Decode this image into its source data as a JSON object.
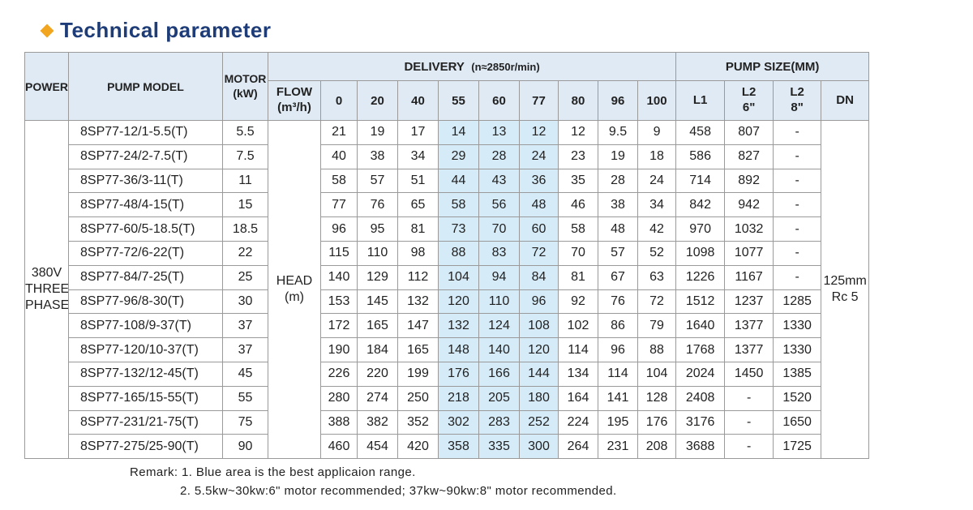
{
  "header": {
    "title": "Technical parameter"
  },
  "table": {
    "power_header": "POWER",
    "model_header": "PUMP MODEL",
    "motor_header": [
      "MOTOR",
      "(kW)"
    ],
    "delivery_header": "DELIVERY",
    "delivery_speed": "(n≈2850r/min)",
    "size_header": "PUMP SIZE(MM)",
    "flow_header": [
      "FLOW",
      "(m³/h)"
    ],
    "flow_points": [
      0,
      20,
      40,
      55,
      60,
      77,
      80,
      96,
      100
    ],
    "size_columns": [
      [
        "L1"
      ],
      [
        "L2",
        "6\""
      ],
      [
        "L2",
        "8\""
      ],
      [
        "DN"
      ]
    ],
    "power": [
      "380V",
      "THREE",
      "PHASE"
    ],
    "head_label": [
      "HEAD",
      "(m)"
    ],
    "dn": [
      "125mm",
      "Rc 5"
    ],
    "rows": [
      {
        "model": "8SP77-12/1-5.5(T)",
        "motor": 5.5,
        "head": [
          21,
          19,
          17,
          14,
          13,
          12,
          12,
          9.5,
          9
        ],
        "l1": 458,
        "l2_6": 807,
        "l2_8": "-"
      },
      {
        "model": "8SP77-24/2-7.5(T)",
        "motor": 7.5,
        "head": [
          40,
          38,
          34,
          29,
          28,
          24,
          23,
          19,
          18
        ],
        "l1": 586,
        "l2_6": 827,
        "l2_8": "-"
      },
      {
        "model": "8SP77-36/3-11(T)",
        "motor": 11,
        "head": [
          58,
          57,
          51,
          44,
          43,
          36,
          35,
          28,
          24
        ],
        "l1": 714,
        "l2_6": 892,
        "l2_8": "-"
      },
      {
        "model": "8SP77-48/4-15(T)",
        "motor": 15,
        "head": [
          77,
          76,
          65,
          58,
          56,
          48,
          46,
          38,
          34
        ],
        "l1": 842,
        "l2_6": 942,
        "l2_8": "-"
      },
      {
        "model": "8SP77-60/5-18.5(T)",
        "motor": 18.5,
        "head": [
          96,
          95,
          81,
          73,
          70,
          60,
          58,
          48,
          42
        ],
        "l1": 970,
        "l2_6": 1032,
        "l2_8": "-"
      },
      {
        "model": "8SP77-72/6-22(T)",
        "motor": 22,
        "head": [
          115,
          110,
          98,
          88,
          83,
          72,
          70,
          57,
          52
        ],
        "l1": 1098,
        "l2_6": 1077,
        "l2_8": "-"
      },
      {
        "model": "8SP77-84/7-25(T)",
        "motor": 25,
        "head": [
          140,
          129,
          112,
          104,
          94,
          84,
          81,
          67,
          63
        ],
        "l1": 1226,
        "l2_6": 1167,
        "l2_8": "-"
      },
      {
        "model": "8SP77-96/8-30(T)",
        "motor": 30,
        "head": [
          153,
          145,
          132,
          120,
          110,
          96,
          92,
          76,
          72
        ],
        "l1": 1512,
        "l2_6": 1237,
        "l2_8": 1285
      },
      {
        "model": "8SP77-108/9-37(T)",
        "motor": 37,
        "head": [
          172,
          165,
          147,
          132,
          124,
          108,
          102,
          86,
          79
        ],
        "l1": 1640,
        "l2_6": 1377,
        "l2_8": 1330
      },
      {
        "model": "8SP77-120/10-37(T)",
        "motor": 37,
        "head": [
          190,
          184,
          165,
          148,
          140,
          120,
          114,
          96,
          88
        ],
        "l1": 1768,
        "l2_6": 1377,
        "l2_8": 1330
      },
      {
        "model": "8SP77-132/12-45(T)",
        "motor": 45,
        "head": [
          226,
          220,
          199,
          176,
          166,
          144,
          134,
          114,
          104
        ],
        "l1": 2024,
        "l2_6": 1450,
        "l2_8": 1385
      },
      {
        "model": "8SP77-165/15-55(T)",
        "motor": 55,
        "head": [
          280,
          274,
          250,
          218,
          205,
          180,
          164,
          141,
          128
        ],
        "l1": 2408,
        "l2_6": "-",
        "l2_8": 1520
      },
      {
        "model": "8SP77-231/21-75(T)",
        "motor": 75,
        "head": [
          388,
          382,
          352,
          302,
          283,
          252,
          224,
          195,
          176
        ],
        "l1": 3176,
        "l2_6": "-",
        "l2_8": 1650
      },
      {
        "model": "8SP77-275/25-90(T)",
        "motor": 90,
        "head": [
          460,
          454,
          420,
          358,
          335,
          300,
          264,
          231,
          208
        ],
        "l1": 3688,
        "l2_6": "-",
        "l2_8": 1725
      }
    ]
  },
  "remarks": [
    "Remark: 1. Blue area is the best applicaion range.",
    "2.  5.5kw~30kw:6\" motor recommended; 37kw~90kw:8\" motor recommended."
  ]
}
